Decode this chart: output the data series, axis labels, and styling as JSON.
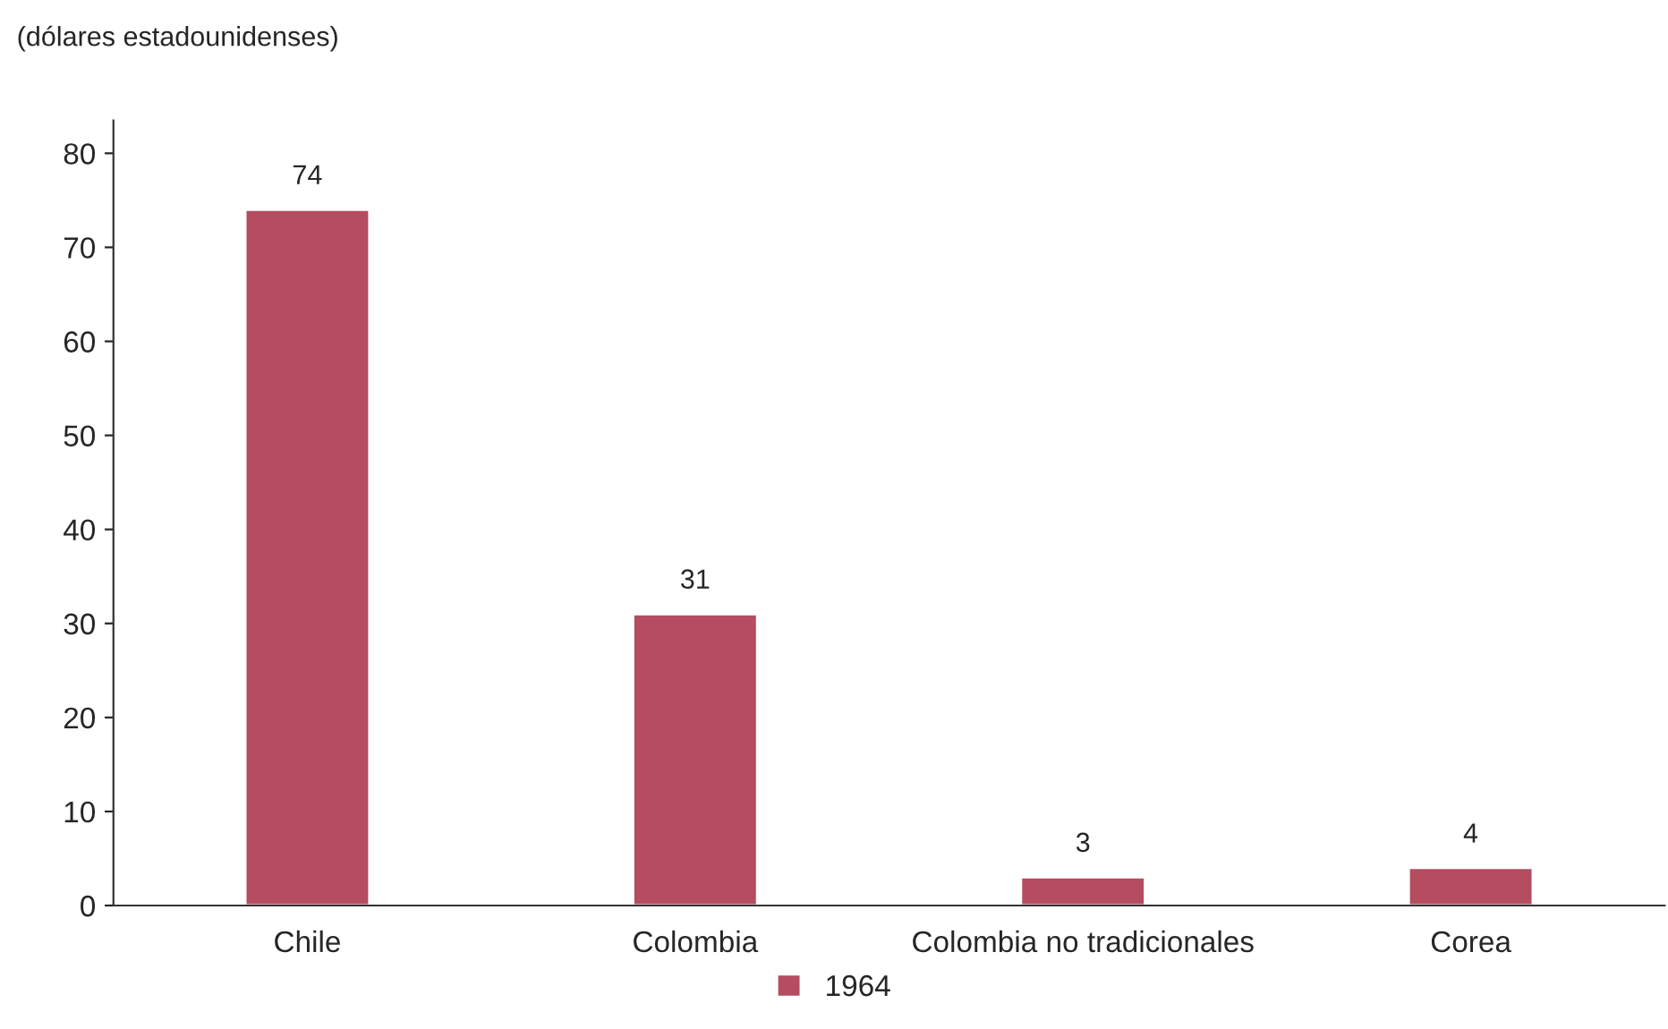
{
  "chart_data": {
    "type": "bar",
    "ylabel": "(dólares estadounidenses)",
    "categories": [
      "Chile",
      "Colombia",
      "Colombia no tradicionales",
      "Corea"
    ],
    "series": [
      {
        "name": "1964",
        "color": "#b54c60",
        "values": [
          74,
          31,
          3,
          4
        ]
      }
    ],
    "ylim": [
      0,
      83.5
    ],
    "yticks": [
      0,
      10,
      20,
      30,
      40,
      50,
      60,
      70,
      80
    ],
    "data_labels": true,
    "grid": false,
    "legend": "bottom"
  }
}
